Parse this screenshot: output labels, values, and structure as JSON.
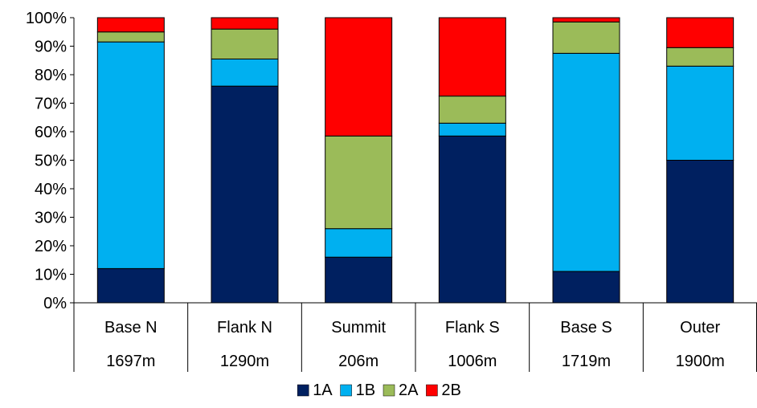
{
  "chart_data": {
    "type": "bar",
    "stacked": true,
    "percent": true,
    "title": "",
    "xlabel": "",
    "ylabel": "",
    "ylim": [
      0,
      100
    ],
    "y_ticks": [
      "0%",
      "10%",
      "20%",
      "30%",
      "40%",
      "50%",
      "60%",
      "70%",
      "80%",
      "90%",
      "100%"
    ],
    "grid": false,
    "legend_position": "bottom",
    "categories": [
      "Base N",
      "Flank N",
      "Summit",
      "Flank S",
      "Base S",
      "Outer"
    ],
    "category_sublabels": [
      "1697m",
      "1290m",
      "206m",
      "1006m",
      "1719m",
      "1900m"
    ],
    "series": [
      {
        "name": "1A",
        "color": "#002060",
        "values": [
          12,
          76,
          16,
          58.5,
          11,
          50
        ]
      },
      {
        "name": "1B",
        "color": "#00B0F0",
        "values": [
          79.5,
          9.5,
          10,
          4.5,
          76.5,
          33
        ]
      },
      {
        "name": "2A",
        "color": "#9BBB59",
        "values": [
          3.5,
          10.5,
          32.5,
          9.5,
          11,
          6.5
        ]
      },
      {
        "name": "2B",
        "color": "#FF0000",
        "values": [
          5,
          4,
          41.5,
          27.5,
          1.5,
          10.5
        ]
      }
    ]
  }
}
